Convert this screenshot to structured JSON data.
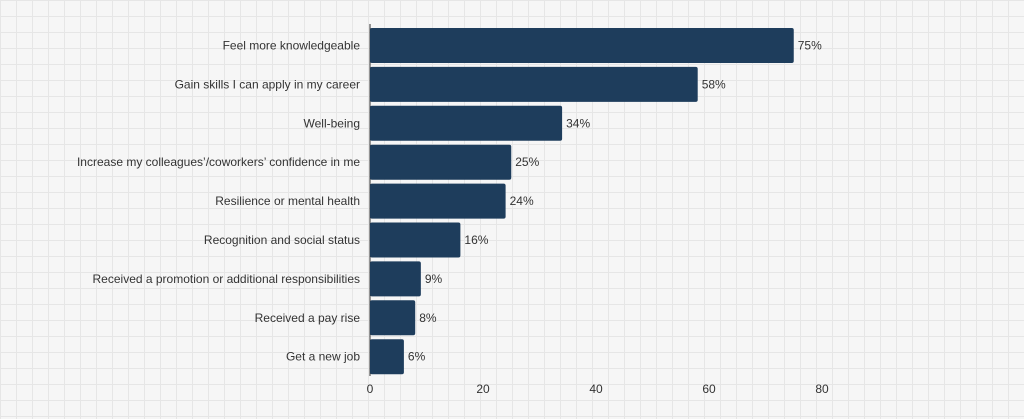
{
  "chart_data": {
    "type": "bar",
    "orientation": "horizontal",
    "categories": [
      "Feel more knowledgeable",
      "Gain skills I can apply in my career",
      "Well-being",
      "Increase my colleagues’/coworkers’ confidence in me",
      "Resilience or mental health",
      "Recognition and social status",
      "Received a promotion or additional responsibilities",
      "Received a pay rise",
      "Get a new job"
    ],
    "values": [
      75,
      58,
      34,
      25,
      24,
      16,
      9,
      8,
      6
    ],
    "value_labels": [
      "75%",
      "58%",
      "34%",
      "25%",
      "24%",
      "16%",
      "9%",
      "8%",
      "6%"
    ],
    "xlim": [
      0,
      80
    ],
    "xticks": [
      "0",
      "20",
      "40",
      "60",
      "80"
    ],
    "title": "",
    "xlabel": "",
    "ylabel": "",
    "grid": false,
    "bar_color": "#1e3d5c"
  }
}
